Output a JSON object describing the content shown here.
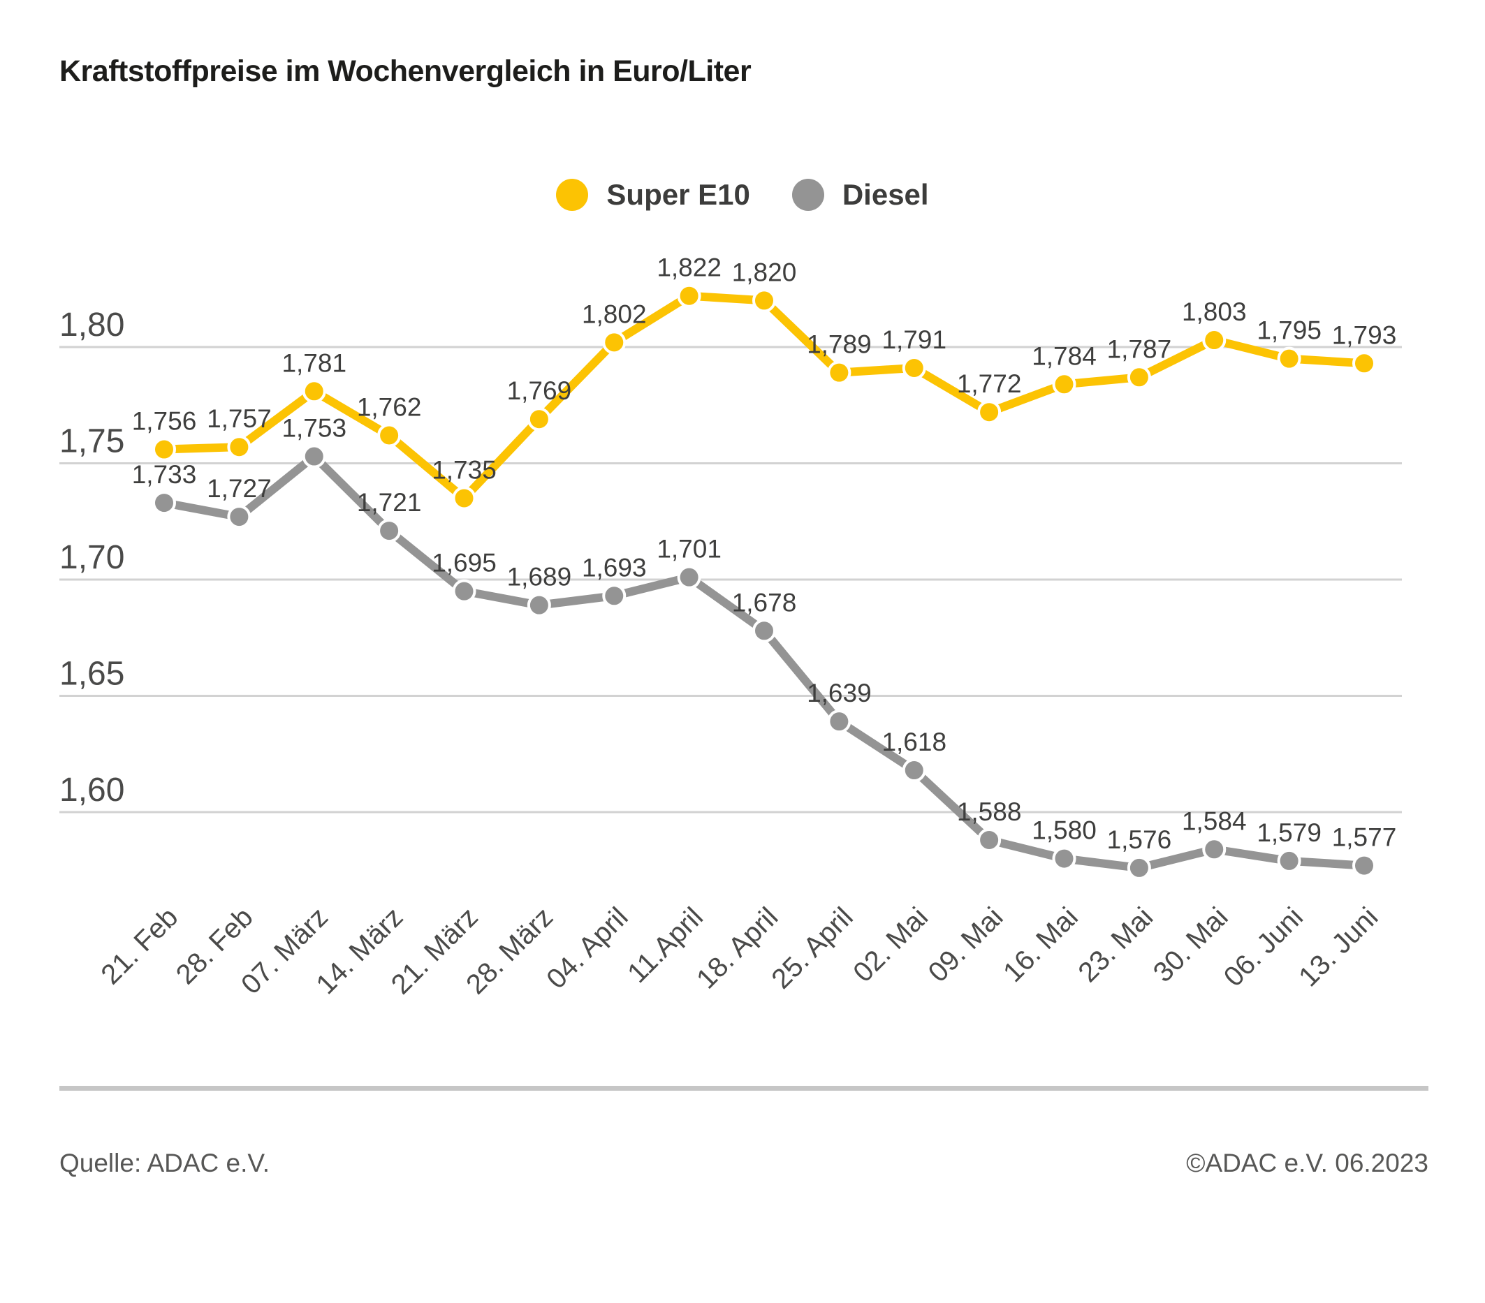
{
  "title": "Kraftstoffpreise im Wochenvergleich in Euro/Liter",
  "legend": {
    "items": [
      {
        "label": "Super E10",
        "color": "#fcc303"
      },
      {
        "label": "Diesel",
        "color": "#949494"
      }
    ]
  },
  "footer": {
    "source": "Quelle: ADAC e.V.",
    "copyright": "©ADAC e.V. 06.2023"
  },
  "colors": {
    "super_e10": "#fcc303",
    "diesel": "#949494",
    "grid": "#d2d2d2",
    "label_text": "#3e3e3d",
    "axis_text": "#4a4a49"
  },
  "chart_data": {
    "type": "line",
    "title": "Kraftstoffpreise im Wochenvergleich in Euro/Liter",
    "xlabel": "",
    "ylabel": "Euro/Liter",
    "categories": [
      "21. Feb",
      "28. Feb",
      "07. März",
      "14. März",
      "21. März",
      "28. März",
      "04. April",
      "11.April",
      "18. April",
      "25. April",
      "02. Mai",
      "09. Mai",
      "16. Mai",
      "23. Mai",
      "30. Mai",
      "06. Juni",
      "13. Juni"
    ],
    "series": [
      {
        "name": "Super E10",
        "color": "#fcc303",
        "values": [
          1.756,
          1.757,
          1.781,
          1.762,
          1.735,
          1.769,
          1.802,
          1.822,
          1.82,
          1.789,
          1.791,
          1.772,
          1.784,
          1.787,
          1.803,
          1.795,
          1.793
        ]
      },
      {
        "name": "Diesel",
        "color": "#949494",
        "values": [
          1.733,
          1.727,
          1.753,
          1.721,
          1.695,
          1.689,
          1.693,
          1.701,
          1.678,
          1.639,
          1.618,
          1.588,
          1.58,
          1.576,
          1.584,
          1.579,
          1.577
        ]
      }
    ],
    "yticks": [
      1.8,
      1.75,
      1.7,
      1.65,
      1.6
    ],
    "ytick_labels": [
      "1,80",
      "1,75",
      "1,70",
      "1,65",
      "1,60"
    ],
    "ylim": [
      1.55,
      1.85
    ],
    "grid": true,
    "legend_position": "top-center",
    "data_labels": true,
    "decimal_separator": ","
  }
}
